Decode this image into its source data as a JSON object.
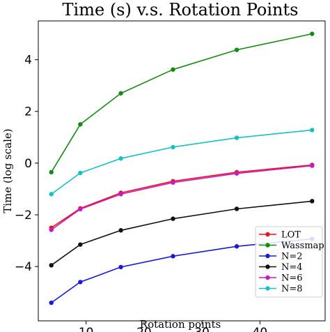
{
  "chart_data": {
    "type": "line",
    "title": "Time (s) v.s. Rotation Points",
    "xlabel": "Rotation points",
    "ylabel": "Time (log scale)",
    "xlim": [
      1.75,
      51.25
    ],
    "ylim": [
      -6.1,
      5.5
    ],
    "xticks": [
      10,
      20,
      30,
      40
    ],
    "xtick_labels": [
      "10",
      "20",
      "30",
      "40"
    ],
    "yticks": [
      -4,
      -2,
      0,
      2,
      4
    ],
    "ytick_labels": [
      "−4",
      "−2",
      "0",
      "2",
      "4"
    ],
    "grid": false,
    "legend_position": "lower-right",
    "x": [
      4,
      9,
      16,
      25,
      36,
      49
    ],
    "series": [
      {
        "name": "LOT",
        "color": "#e8141e",
        "values": [
          -2.5,
          -1.75,
          -1.15,
          -0.7,
          -0.35,
          -0.07
        ]
      },
      {
        "name": "Wassmap",
        "color": "#138a13",
        "values": [
          -0.35,
          1.5,
          2.7,
          3.62,
          4.38,
          5.0
        ]
      },
      {
        "name": "N=2",
        "color": "#1a1ad6",
        "values": [
          -5.4,
          -4.6,
          -4.02,
          -3.6,
          -3.22,
          -2.93
        ]
      },
      {
        "name": "N=4",
        "color": "#111111",
        "values": [
          -3.95,
          -3.15,
          -2.6,
          -2.15,
          -1.77,
          -1.47
        ]
      },
      {
        "name": "N=6",
        "color": "#c51bc5",
        "values": [
          -2.58,
          -1.78,
          -1.2,
          -0.75,
          -0.4,
          -0.1
        ]
      },
      {
        "name": "N=8",
        "color": "#1abfbf",
        "values": [
          -1.2,
          -0.38,
          0.18,
          0.62,
          0.98,
          1.28
        ]
      }
    ]
  }
}
